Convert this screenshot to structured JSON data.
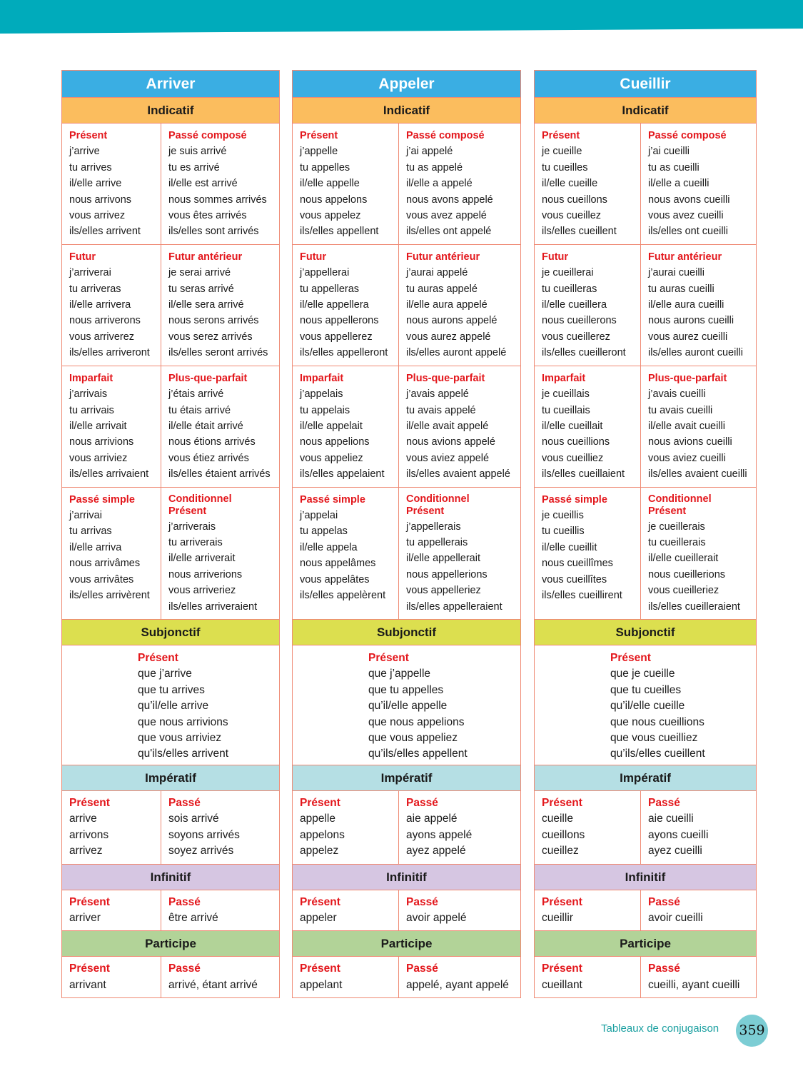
{
  "labels": {
    "indicatif": "Indicatif",
    "subjonctif": "Subjonctif",
    "imperatif": "Impératif",
    "infinitif": "Infinitif",
    "participe": "Participe"
  },
  "colors": {
    "header_band": "#00abbb",
    "verb_title": "#3aaee3",
    "indicatif": "#fbbd5e",
    "subjonctif": "#dcdf4f",
    "imperatif": "#b5dfe4",
    "infinitif": "#d6c6e2",
    "participe": "#b2d398",
    "tense_label": "#e3171c",
    "border": "#ef8a74"
  },
  "verbs": [
    {
      "name": "Arriver",
      "indicatif": [
        [
          {
            "t": "Présent",
            "l": [
              "j’arrive",
              "tu arrives",
              "il/elle arrive",
              "nous arrivons",
              "vous arrivez",
              "ils/elles arrivent"
            ]
          },
          {
            "t": "Passé composé",
            "l": [
              "je suis arrivé",
              "tu es arrivé",
              "il/elle est arrivé",
              "nous sommes arrivés",
              "vous êtes arrivés",
              "ils/elles sont arrivés"
            ]
          }
        ],
        [
          {
            "t": "Futur",
            "l": [
              "j’arriverai",
              "tu arriveras",
              "il/elle arrivera",
              "nous arriverons",
              "vous arriverez",
              "ils/elles arriveront"
            ]
          },
          {
            "t": "Futur antérieur",
            "l": [
              "je serai arrivé",
              "tu seras arrivé",
              "il/elle sera arrivé",
              "nous serons arrivés",
              "vous serez arrivés",
              "ils/elles seront arrivés"
            ]
          }
        ],
        [
          {
            "t": "Imparfait",
            "l": [
              "j’arrivais",
              "tu arrivais",
              "il/elle arrivait",
              "nous arrivions",
              "vous arriviez",
              "ils/elles arrivaient"
            ]
          },
          {
            "t": "Plus-que-parfait",
            "l": [
              "j’étais arrivé",
              "tu étais arrivé",
              "il/elle était arrivé",
              "nous étions arrivés",
              "vous étiez arrivés",
              "ils/elles étaient arrivés"
            ]
          }
        ],
        [
          {
            "t": "Passé simple",
            "l": [
              "j’arrivai",
              "tu arrivas",
              "il/elle arriva",
              "nous arrivâmes",
              "vous arrivâtes",
              "ils/elles arrivèrent"
            ]
          },
          {
            "t": "Conditionnel Présent",
            "l": [
              "j’arriverais",
              "tu arriverais",
              "il/elle arriverait",
              "nous arriverions",
              "vous arriveriez",
              "ils/elles arriveraient"
            ]
          }
        ]
      ],
      "subjonctif": {
        "t": "Présent",
        "l": [
          "que j’arrive",
          "que tu arrives",
          "qu’il/elle arrive",
          "que nous arrivions",
          "que vous arriviez",
          "qu'ils/elles arrivent"
        ]
      },
      "imperatif": [
        {
          "t": "Présent",
          "l": [
            "arrive",
            "arrivons",
            "arrivez"
          ]
        },
        {
          "t": "Passé",
          "l": [
            "sois arrivé",
            "soyons arrivés",
            "soyez arrivés"
          ]
        }
      ],
      "infinitif": [
        {
          "t": "Présent",
          "l": [
            "arriver"
          ]
        },
        {
          "t": "Passé",
          "l": [
            "être arrivé"
          ]
        }
      ],
      "participe": [
        {
          "t": "Présent",
          "l": [
            "arrivant"
          ]
        },
        {
          "t": "Passé",
          "l": [
            "arrivé, étant arrivé"
          ]
        }
      ]
    },
    {
      "name": "Appeler",
      "indicatif": [
        [
          {
            "t": "Présent",
            "l": [
              "j’appelle",
              "tu appelles",
              "il/elle appelle",
              "nous appelons",
              "vous appelez",
              "ils/elles appellent"
            ]
          },
          {
            "t": "Passé composé",
            "l": [
              "j’ai appelé",
              "tu as appelé",
              "il/elle a appelé",
              "nous avons appelé",
              "vous avez appelé",
              "ils/elles ont appelé"
            ]
          }
        ],
        [
          {
            "t": "Futur",
            "l": [
              "j’appellerai",
              "tu appelleras",
              "il/elle appellera",
              "nous appellerons",
              "vous appellerez",
              "ils/elles appelleront"
            ]
          },
          {
            "t": "Futur antérieur",
            "l": [
              "j’aurai appelé",
              "tu auras appelé",
              "il/elle aura appelé",
              "nous aurons appelé",
              "vous aurez appelé",
              "ils/elles auront appelé"
            ]
          }
        ],
        [
          {
            "t": "Imparfait",
            "l": [
              "j’appelais",
              "tu appelais",
              "il/elle appelait",
              "nous appelions",
              "vous appeliez",
              "ils/elles appelaient"
            ]
          },
          {
            "t": "Plus-que-parfait",
            "l": [
              "j’avais appelé",
              "tu avais appelé",
              "il/elle avait appelé",
              "nous avions appelé",
              "vous aviez appelé",
              "ils/elles avaient appelé"
            ]
          }
        ],
        [
          {
            "t": "Passé simple",
            "l": [
              "j’appelai",
              "tu appelas",
              "il/elle appela",
              "nous appelâmes",
              "vous appelâtes",
              "ils/elles appelèrent"
            ]
          },
          {
            "t": "Conditionnel Présent",
            "l": [
              "j’appellerais",
              "tu appellerais",
              "il/elle appellerait",
              "nous appellerions",
              "vous appelleriez",
              "ils/elles appelleraient"
            ]
          }
        ]
      ],
      "subjonctif": {
        "t": "Présent",
        "l": [
          "que j’appelle",
          "que tu appelles",
          "qu’il/elle appelle",
          "que nous appelions",
          "que vous appeliez",
          "qu’ils/elles appellent"
        ]
      },
      "imperatif": [
        {
          "t": "Présent",
          "l": [
            "appelle",
            "appelons",
            "appelez"
          ]
        },
        {
          "t": "Passé",
          "l": [
            "aie appelé",
            "ayons appelé",
            "ayez appelé"
          ]
        }
      ],
      "infinitif": [
        {
          "t": "Présent",
          "l": [
            "appeler"
          ]
        },
        {
          "t": "Passé",
          "l": [
            "avoir appelé"
          ]
        }
      ],
      "participe": [
        {
          "t": "Présent",
          "l": [
            "appelant"
          ]
        },
        {
          "t": "Passé",
          "l": [
            "appelé, ayant appelé"
          ]
        }
      ]
    },
    {
      "name": "Cueillir",
      "indicatif": [
        [
          {
            "t": "Présent",
            "l": [
              "je cueille",
              "tu cueilles",
              "il/elle cueille",
              "nous cueillons",
              "vous cueillez",
              "ils/elles cueillent"
            ]
          },
          {
            "t": "Passé composé",
            "l": [
              "j’ai cueilli",
              "tu as cueilli",
              "il/elle a cueilli",
              "nous avons cueilli",
              "vous avez cueilli",
              "ils/elles ont cueilli"
            ]
          }
        ],
        [
          {
            "t": "Futur",
            "l": [
              "je cueillerai",
              "tu cueilleras",
              "il/elle cueillera",
              "nous cueillerons",
              "vous cueillerez",
              "ils/elles cueilleront"
            ]
          },
          {
            "t": "Futur antérieur",
            "l": [
              "j’aurai cueilli",
              "tu auras cueilli",
              "il/elle aura cueilli",
              "nous aurons cueilli",
              "vous aurez cueilli",
              "ils/elles auront cueilli"
            ]
          }
        ],
        [
          {
            "t": "Imparfait",
            "l": [
              "je cueillais",
              "tu cueillais",
              "il/elle cueillait",
              "nous cueillions",
              "vous cueilliez",
              "ils/elles cueillaient"
            ]
          },
          {
            "t": "Plus-que-parfait",
            "l": [
              "j’avais cueilli",
              "tu avais cueilli",
              "il/elle avait cueilli",
              "nous avions cueilli",
              "vous aviez cueilli",
              "ils/elles avaient cueilli"
            ]
          }
        ],
        [
          {
            "t": "Passé simple",
            "l": [
              "je cueillis",
              "tu cueillis",
              "il/elle cueillit",
              "nous cueillîmes",
              "vous cueillîtes",
              "ils/elles cueillirent"
            ]
          },
          {
            "t": "Conditionnel Présent",
            "l": [
              "je cueillerais",
              "tu cueillerais",
              "il/elle cueillerait",
              "nous cueillerions",
              "vous cueilleriez",
              "ils/elles cueilleraient"
            ]
          }
        ]
      ],
      "subjonctif": {
        "t": "Présent",
        "l": [
          "que je cueille",
          "que tu cueilles",
          "qu’il/elle cueille",
          "que nous cueillions",
          "que vous cueilliez",
          "qu’ils/elles cueillent"
        ]
      },
      "imperatif": [
        {
          "t": "Présent",
          "l": [
            "cueille",
            "cueillons",
            "cueillez"
          ]
        },
        {
          "t": "Passé",
          "l": [
            "aie cueilli",
            "ayons cueilli",
            "ayez cueilli"
          ]
        }
      ],
      "infinitif": [
        {
          "t": "Présent",
          "l": [
            "cueillir"
          ]
        },
        {
          "t": "Passé",
          "l": [
            "avoir cueilli"
          ]
        }
      ],
      "participe": [
        {
          "t": "Présent",
          "l": [
            "cueillant"
          ]
        },
        {
          "t": "Passé",
          "l": [
            "cueilli, ayant cueilli"
          ]
        }
      ]
    }
  ],
  "footer": {
    "section": "Tableaux de conjugaison",
    "page": "359"
  }
}
